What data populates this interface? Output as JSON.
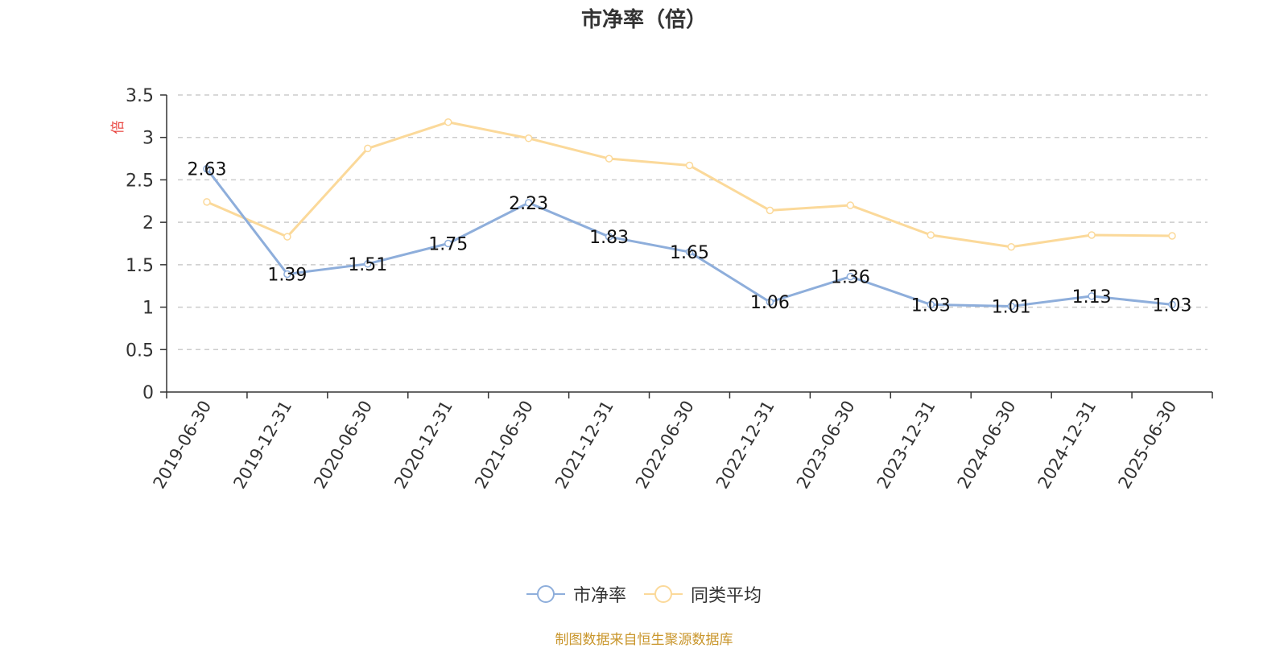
{
  "chart_data": {
    "type": "line",
    "title": "市净率（倍）",
    "ylabel": "倍",
    "categories": [
      "2019-06-30",
      "2019-12-31",
      "2020-06-30",
      "2020-12-31",
      "2021-06-30",
      "2021-12-31",
      "2022-06-30",
      "2022-12-31",
      "2023-06-30",
      "2023-12-31",
      "2024-06-30",
      "2024-12-31",
      "2025-06-30"
    ],
    "ylim": [
      0,
      3.5
    ],
    "yticks": [
      "0",
      "0.5",
      "1",
      "1.5",
      "2",
      "2.5",
      "3",
      "3.5"
    ],
    "grid": true,
    "legend_position": "bottom",
    "series": [
      {
        "name": "市净率",
        "color": "#8eaedb",
        "values": [
          2.63,
          1.39,
          1.51,
          1.75,
          2.23,
          1.83,
          1.65,
          1.06,
          1.36,
          1.03,
          1.01,
          1.13,
          1.03
        ],
        "data_labels": [
          "2.63",
          "1.39",
          "1.51",
          "1.75",
          "2.23",
          "1.83",
          "1.65",
          "1.06",
          "1.36",
          "1.03",
          "1.01",
          "1.13",
          "1.03"
        ]
      },
      {
        "name": "同类平均",
        "color": "#fbd99a",
        "values": [
          2.24,
          1.83,
          2.87,
          3.18,
          2.99,
          2.75,
          2.67,
          2.14,
          2.2,
          1.85,
          1.71,
          1.85,
          1.84
        ]
      }
    ],
    "source_note": "制图数据来自恒生聚源数据库"
  },
  "colors": {
    "axis": "#333333",
    "grid": "#cccccc",
    "ylabel": "#e8413c",
    "source": "#c9962c"
  }
}
